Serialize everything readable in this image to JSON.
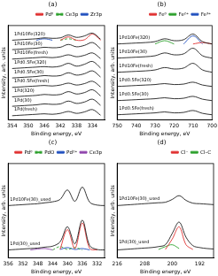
{
  "chart_data": [
    {
      "type": "line",
      "title": "(a)",
      "x_label": "Binding energy, eV",
      "y_label": "Intensity, arb. units",
      "x": [
        354,
        352,
        350,
        348,
        346,
        344,
        342,
        340,
        338,
        336,
        334,
        332
      ],
      "xlim": [
        355,
        331
      ],
      "xticks": [
        354,
        350,
        346,
        342,
        338,
        334
      ],
      "ylim": [
        0,
        100
      ],
      "grid": false,
      "tick_labels": "x",
      "legend": "top",
      "series": [
        {
          "color": "#000000",
          "line_style": "solid",
          "values": [
            84.5,
            85,
            85.5,
            86,
            87,
            86.5,
            87,
            90,
            87.5,
            89,
            92,
            85.5
          ]
        },
        {
          "color": "#000000",
          "line_style": "solid",
          "values": [
            74.5,
            75,
            75.5,
            76,
            77,
            76.5,
            77,
            80,
            77.5,
            79,
            82,
            75.5
          ]
        },
        {
          "color": "#000000",
          "line_style": "solid",
          "values": [
            64.5,
            65,
            65.5,
            66,
            66.5,
            66,
            67,
            69,
            67,
            68.5,
            71,
            65
          ]
        },
        {
          "color": "#000000",
          "line_style": "solid",
          "values": [
            54.5,
            55,
            55.5,
            56,
            56.5,
            56,
            57,
            60,
            57,
            59,
            62,
            55
          ]
        },
        {
          "color": "#000000",
          "line_style": "solid",
          "values": [
            44.5,
            45,
            45.5,
            46,
            47,
            46.5,
            47,
            50,
            47.5,
            49,
            52,
            45.5
          ]
        },
        {
          "color": "#000000",
          "line_style": "solid",
          "values": [
            34.5,
            35,
            35.5,
            36,
            36.5,
            36,
            37,
            39,
            37,
            38.5,
            41,
            35
          ]
        },
        {
          "color": "#000000",
          "line_style": "solid",
          "values": [
            24.5,
            25,
            25.5,
            26,
            27,
            26.5,
            27,
            30,
            27.5,
            29,
            32,
            25.5
          ]
        },
        {
          "color": "#000000",
          "line_style": "solid",
          "values": [
            14.5,
            15,
            15.5,
            16,
            17,
            16.5,
            17,
            20,
            17.5,
            19,
            22,
            15.5
          ]
        },
        {
          "color": "#000000",
          "line_style": "solid",
          "values": [
            4.5,
            5,
            5.5,
            6,
            6.5,
            6,
            7,
            9,
            7,
            8.5,
            11,
            5
          ]
        },
        {
          "name": "Pd⁰",
          "color": "#e03030",
          "line_style": "solid",
          "values": [
            null,
            null,
            null,
            null,
            null,
            null,
            84.5,
            88,
            84.5,
            85,
            91,
            84.5
          ]
        },
        {
          "name": "Ce3p",
          "color": "#2ca02c",
          "line_style": "dashed",
          "values": [
            null,
            null,
            null,
            null,
            null,
            null,
            84.5,
            86,
            84.5,
            null,
            null,
            null
          ]
        },
        {
          "name": "Zr3p",
          "color": "#1f4fbf",
          "line_style": "solid",
          "values": [
            null,
            null,
            null,
            84.5,
            86,
            84.5,
            null,
            null,
            null,
            null,
            null,
            null
          ]
        }
      ],
      "annotations": [
        {
          "text": "1Pd10Fe(320)",
          "x": 353.5,
          "y": 88.5
        },
        {
          "text": "1Pd10Fe(30)",
          "x": 353.5,
          "y": 78.5
        },
        {
          "text": "1Pd10Fe(fresh)",
          "x": 353.5,
          "y": 68.5
        },
        {
          "text": "1Pd0.5Fe(320)",
          "x": 353.5,
          "y": 58.5
        },
        {
          "text": "1Pd0.5Fe(30)",
          "x": 353.5,
          "y": 48.5
        },
        {
          "text": "1Pd0.5Fe(fresh)",
          "x": 353.5,
          "y": 38.5
        },
        {
          "text": "1Pd(320)",
          "x": 353.5,
          "y": 28.5
        },
        {
          "text": "1Pd(30)",
          "x": 353.5,
          "y": 18.5
        },
        {
          "text": "1Pd(fresh)",
          "x": 353.5,
          "y": 8.5
        }
      ]
    },
    {
      "type": "line",
      "title": "(b)",
      "x_label": "Binding energy, eV",
      "y_label": "Intensity, arb. units",
      "x": [
        750,
        745,
        740,
        735,
        730,
        725,
        720,
        715,
        710,
        705,
        700
      ],
      "xlim": [
        750,
        700
      ],
      "xticks": [
        750,
        740,
        730,
        720,
        710,
        700
      ],
      "ylim": [
        0,
        100
      ],
      "grid": false,
      "tick_labels": "x",
      "legend": "top",
      "series": [
        {
          "color": "#000000",
          "line_style": "solid",
          "values": [
            80.5,
            81,
            81.5,
            82,
            83,
            86,
            84,
            85,
            91,
            83,
            80.5
          ]
        },
        {
          "color": "#000000",
          "line_style": "solid",
          "values": [
            65.5,
            66,
            66.5,
            67,
            68,
            71,
            69,
            70,
            76,
            68,
            65.5
          ]
        },
        {
          "color": "#000000",
          "line_style": "solid",
          "values": [
            50.5,
            51,
            51.5,
            52,
            53,
            55.5,
            54,
            55,
            60,
            53,
            50.5
          ]
        },
        {
          "color": "#000000",
          "line_style": "solid",
          "values": [
            35.5,
            36,
            36.5,
            37,
            37.5,
            38.5,
            37.5,
            38,
            40,
            37,
            35.5
          ]
        },
        {
          "color": "#000000",
          "line_style": "solid",
          "values": [
            20.5,
            21,
            21.5,
            22,
            22.5,
            23.5,
            22.5,
            23,
            25,
            22,
            20.5
          ]
        },
        {
          "color": "#000000",
          "line_style": "solid",
          "values": [
            5.5,
            6,
            6.5,
            7,
            7.5,
            8.5,
            7.5,
            8,
            10,
            7,
            5.5
          ]
        },
        {
          "name": "Fe⁰",
          "color": "#e03030",
          "line_style": "solid",
          "values": [
            null,
            null,
            null,
            null,
            null,
            null,
            null,
            null,
            80.5,
            82,
            80.5
          ]
        },
        {
          "name": "Fe²⁺",
          "color": "#2ca02c",
          "line_style": "solid",
          "values": [
            null,
            null,
            null,
            null,
            80.5,
            84,
            80.5,
            null,
            null,
            null,
            null
          ]
        },
        {
          "name": "Fe³⁺",
          "color": "#1f4fbf",
          "line_style": "solid",
          "values": [
            null,
            null,
            null,
            null,
            null,
            null,
            null,
            80.5,
            89,
            80.5,
            null
          ]
        }
      ],
      "annotations": [
        {
          "text": "1Pd10Fe(320)",
          "x": 749,
          "y": 85
        },
        {
          "text": "1Pd10Fe(30)",
          "x": 749,
          "y": 70
        },
        {
          "text": "1Pd10Fe(fresh)",
          "x": 749,
          "y": 55
        },
        {
          "text": "1Pd0.5Fe(320)",
          "x": 749,
          "y": 40
        },
        {
          "text": "1Pd0.5Fe(30)",
          "x": 749,
          "y": 25
        },
        {
          "text": "1Pd0.5Fe(fresh)",
          "x": 749,
          "y": 10
        }
      ]
    },
    {
      "type": "line",
      "title": "(c)",
      "x_label": "Binding energy, eV",
      "y_label": "Intensity, arb. units",
      "x": [
        356,
        354,
        352,
        350,
        348,
        346,
        344,
        342,
        340,
        338,
        336,
        334,
        332,
        330
      ],
      "xlim": [
        356,
        330
      ],
      "xticks": [
        356,
        352,
        348,
        344,
        340,
        336,
        332
      ],
      "ylim": [
        0,
        100
      ],
      "grid": false,
      "tick_labels": "x",
      "legend": "top",
      "series": [
        {
          "color": "#000000",
          "line_style": "solid",
          "values": [
            55.5,
            56,
            56.5,
            57,
            57.5,
            58.5,
            59.5,
            62,
            72,
            60,
            75,
            59,
            56,
            55.5
          ]
        },
        {
          "color": "#000000",
          "line_style": "solid",
          "values": [
            8.5,
            9,
            9.5,
            10,
            10.5,
            11.5,
            12.5,
            17,
            33,
            15,
            40,
            13,
            9,
            8.5
          ]
        },
        {
          "name": "Pd⁰",
          "color": "#e03030",
          "line_style": "solid",
          "values": [
            null,
            null,
            null,
            null,
            null,
            null,
            null,
            9,
            30,
            10,
            37,
            10,
            8.5,
            null
          ]
        },
        {
          "name": "PdO",
          "color": "#2ca02c",
          "line_style": "dashed",
          "values": [
            null,
            null,
            null,
            null,
            null,
            null,
            8.5,
            12,
            9,
            11,
            8.5,
            null,
            null,
            null
          ]
        },
        {
          "name": "Pd²⁺",
          "color": "#1f4fbf",
          "line_style": "solid",
          "values": [
            null,
            null,
            null,
            null,
            null,
            null,
            null,
            9,
            11,
            9,
            10,
            8.5,
            null,
            null
          ]
        },
        {
          "name": "Ce3p",
          "color": "#8e44ad",
          "line_style": "solid",
          "values": [
            null,
            null,
            null,
            8.5,
            9.5,
            10,
            8.5,
            null,
            null,
            null,
            null,
            null,
            null,
            null
          ]
        }
      ],
      "annotations": [
        {
          "text": "1Pd10Fe(30)_used",
          "x": 355.5,
          "y": 59
        },
        {
          "text": "1Pd(30)_used",
          "x": 355.5,
          "y": 13
        }
      ]
    },
    {
      "type": "line",
      "title": "(d)",
      "x_label": "Binding energy, eV",
      "y_label": "Intensity, arb. units",
      "x": [
        216,
        214,
        212,
        210,
        208,
        206,
        204,
        202,
        200,
        198,
        196,
        194,
        192,
        190,
        188
      ],
      "xlim": [
        216,
        188
      ],
      "xticks": [
        216,
        208,
        200,
        192
      ],
      "ylim": [
        0,
        100
      ],
      "grid": false,
      "tick_labels": "x",
      "legend": "top",
      "series": [
        {
          "color": "#000000",
          "line_style": "solid",
          "values": [
            55.5,
            56,
            56.5,
            57,
            57.5,
            58,
            58.5,
            59,
            62,
            66,
            61,
            58,
            57.5,
            57,
            56.5
          ]
        },
        {
          "color": "#000000",
          "line_style": "solid",
          "values": [
            8.5,
            9,
            9.5,
            10,
            10.5,
            11,
            12,
            14,
            26,
            38,
            22,
            13,
            11,
            10,
            9.5
          ]
        },
        {
          "name": "Cl⁻",
          "color": "#e03030",
          "line_style": "solid",
          "values": [
            null,
            null,
            null,
            null,
            null,
            null,
            null,
            9,
            20,
            33,
            14,
            9,
            null,
            null,
            null
          ]
        },
        {
          "name": "Cl–C",
          "color": "#2ca02c",
          "line_style": "solid",
          "values": [
            null,
            null,
            null,
            null,
            null,
            null,
            9,
            12,
            14,
            10,
            null,
            null,
            null,
            null,
            null
          ]
        }
      ],
      "annotations": [
        {
          "text": "1Pd10Fe(30)_used",
          "x": 215.5,
          "y": 60
        },
        {
          "text": "1Pd(30)_used",
          "x": 215.5,
          "y": 14
        }
      ]
    }
  ]
}
